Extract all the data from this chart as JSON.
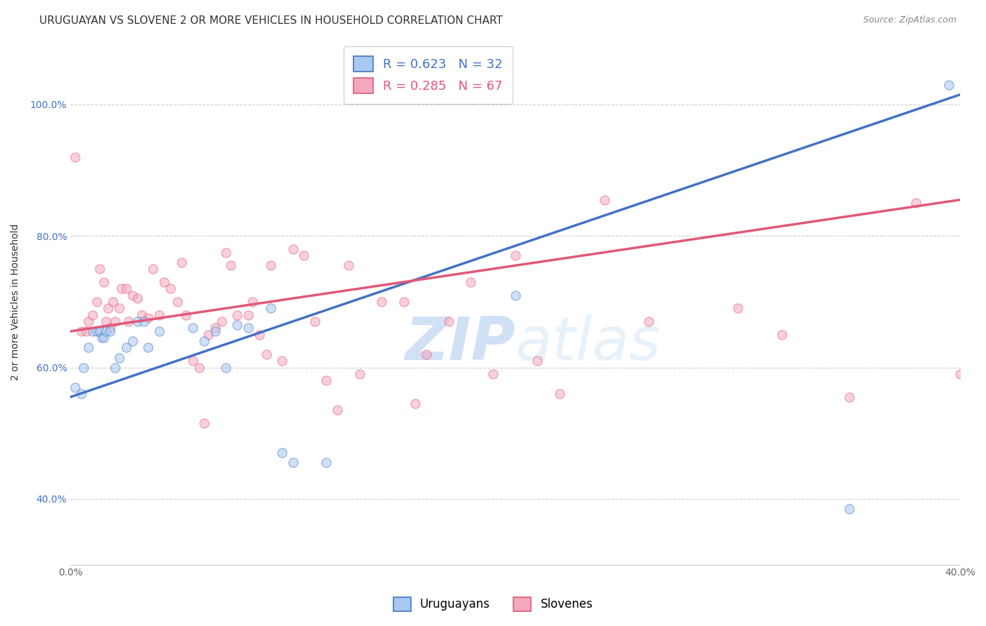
{
  "title": "URUGUAYAN VS SLOVENE 2 OR MORE VEHICLES IN HOUSEHOLD CORRELATION CHART",
  "source_text": "Source: ZipAtlas.com",
  "ylabel": "2 or more Vehicles in Household",
  "xlim": [
    0.0,
    0.4
  ],
  "ylim": [
    0.3,
    1.1
  ],
  "ytick_vals": [
    0.4,
    0.6,
    0.8,
    1.0
  ],
  "ytick_labels": [
    "40.0%",
    "60.0%",
    "80.0%",
    "100.0%"
  ],
  "xtick_vals": [
    0.0,
    0.05,
    0.1,
    0.15,
    0.2,
    0.25,
    0.3,
    0.35,
    0.4
  ],
  "xtick_labels": [
    "0.0%",
    "",
    "",
    "",
    "",
    "",
    "",
    "",
    "40.0%"
  ],
  "uruguayan_color": "#A8C8F0",
  "slovene_color": "#F4A8BC",
  "uruguayan_line_color": "#4472C4",
  "slovene_line_color": "#E05878",
  "uruguayan_R": 0.623,
  "uruguayan_N": 32,
  "slovene_R": 0.285,
  "slovene_N": 67,
  "legend_label_uruguayan": "Uruguayans",
  "legend_label_slovene": "Slovenes",
  "uruguayan_x": [
    0.002,
    0.005,
    0.006,
    0.008,
    0.01,
    0.012,
    0.013,
    0.014,
    0.015,
    0.016,
    0.018,
    0.02,
    0.022,
    0.025,
    0.028,
    0.03,
    0.033,
    0.035,
    0.04,
    0.055,
    0.06,
    0.065,
    0.07,
    0.075,
    0.08,
    0.09,
    0.095,
    0.1,
    0.115,
    0.2,
    0.35,
    0.395
  ],
  "uruguayan_y": [
    0.57,
    0.56,
    0.6,
    0.63,
    0.655,
    0.655,
    0.655,
    0.645,
    0.645,
    0.655,
    0.655,
    0.6,
    0.615,
    0.63,
    0.64,
    0.67,
    0.67,
    0.63,
    0.655,
    0.66,
    0.64,
    0.655,
    0.6,
    0.665,
    0.66,
    0.69,
    0.47,
    0.455,
    0.455,
    0.71,
    0.385,
    1.03
  ],
  "slovene_x": [
    0.002,
    0.005,
    0.007,
    0.008,
    0.01,
    0.012,
    0.013,
    0.015,
    0.016,
    0.017,
    0.018,
    0.019,
    0.02,
    0.022,
    0.023,
    0.025,
    0.026,
    0.028,
    0.03,
    0.032,
    0.035,
    0.037,
    0.04,
    0.042,
    0.045,
    0.048,
    0.05,
    0.052,
    0.055,
    0.058,
    0.06,
    0.062,
    0.065,
    0.068,
    0.07,
    0.072,
    0.075,
    0.08,
    0.082,
    0.085,
    0.088,
    0.09,
    0.095,
    0.1,
    0.105,
    0.11,
    0.115,
    0.12,
    0.125,
    0.13,
    0.14,
    0.15,
    0.155,
    0.16,
    0.17,
    0.18,
    0.19,
    0.2,
    0.21,
    0.22,
    0.24,
    0.26,
    0.3,
    0.32,
    0.35,
    0.38,
    0.4
  ],
  "slovene_y": [
    0.92,
    0.655,
    0.655,
    0.67,
    0.68,
    0.7,
    0.75,
    0.73,
    0.67,
    0.69,
    0.66,
    0.7,
    0.67,
    0.69,
    0.72,
    0.72,
    0.67,
    0.71,
    0.705,
    0.68,
    0.675,
    0.75,
    0.68,
    0.73,
    0.72,
    0.7,
    0.76,
    0.68,
    0.61,
    0.6,
    0.515,
    0.65,
    0.66,
    0.67,
    0.775,
    0.755,
    0.68,
    0.68,
    0.7,
    0.65,
    0.62,
    0.755,
    0.61,
    0.78,
    0.77,
    0.67,
    0.58,
    0.535,
    0.755,
    0.59,
    0.7,
    0.7,
    0.545,
    0.62,
    0.67,
    0.73,
    0.59,
    0.77,
    0.61,
    0.56,
    0.855,
    0.67,
    0.69,
    0.65,
    0.555,
    0.85,
    0.59
  ],
  "blue_line_y0": 0.555,
  "blue_line_y1": 1.015,
  "pink_line_y0": 0.655,
  "pink_line_y1": 0.855,
  "background_color": "#FFFFFF",
  "grid_color": "#CCCCCC",
  "title_fontsize": 11,
  "axis_label_fontsize": 10,
  "tick_fontsize": 10,
  "legend_fontsize": 13,
  "marker_size": 90,
  "marker_alpha": 0.55
}
